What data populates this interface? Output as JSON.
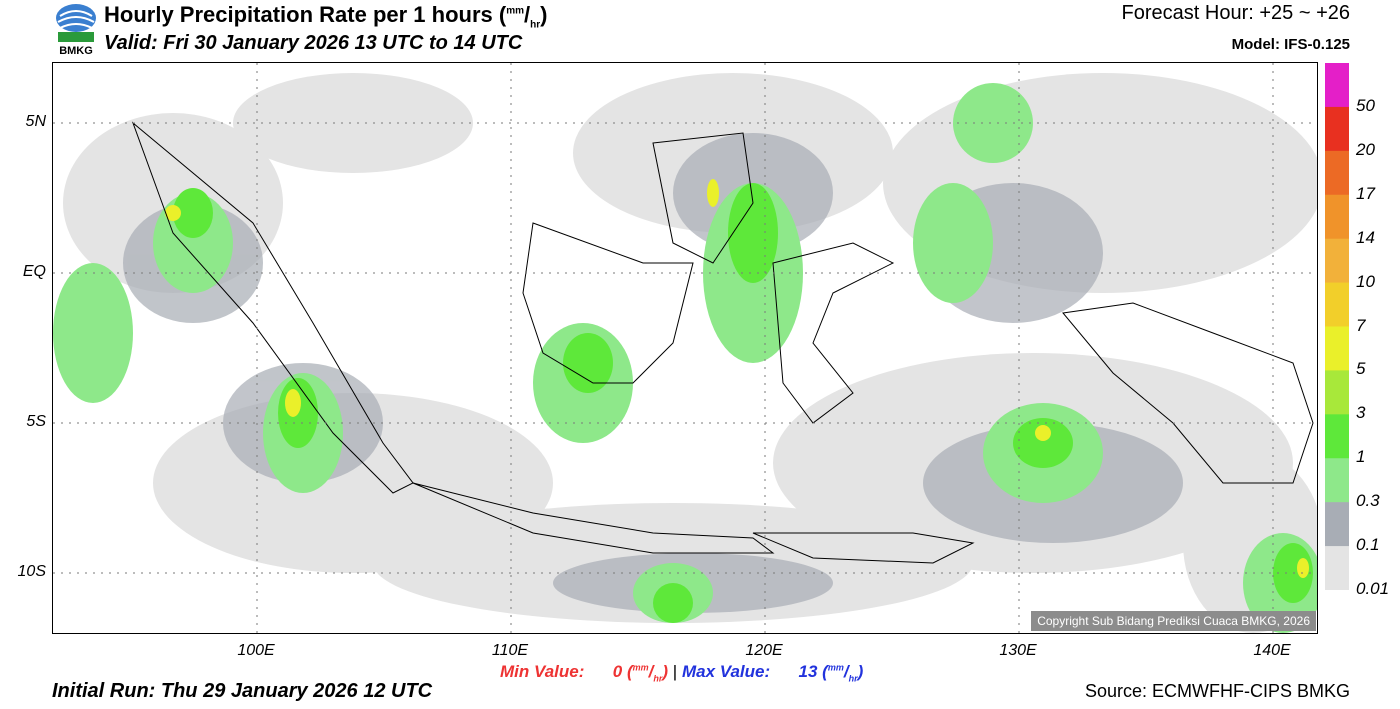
{
  "header": {
    "title_main": "Hourly Precipitation Rate per 1 hours (",
    "title_unit_top": "mm",
    "title_unit_sep": "/",
    "title_unit_bottom": "hr",
    "title_close": ")",
    "valid": "Valid: Fri 30 January 2026 13 UTC to 14 UTC",
    "forecast_hour": "Forecast Hour: +25 ~ +26",
    "model": "Model: IFS-0.125",
    "logo_text": "BMKG"
  },
  "map": {
    "lat_labels": [
      "5N",
      "EQ",
      "5S",
      "10S"
    ],
    "lon_labels": [
      "100E",
      "110E",
      "120E",
      "130E",
      "140E"
    ],
    "copyright": "Copyright Sub Bidang Prediksi Cuaca BMKG, 2026"
  },
  "stats": {
    "min_label": "Min Value:",
    "min_value": "0",
    "max_label": "Max Value:",
    "max_value": "13",
    "unit_top": "mm",
    "unit_bottom": "hr",
    "separator": "|"
  },
  "footer": {
    "initial_run": "Initial Run: Thu 29 January 2026 12 UTC",
    "source": "Source: ECMWFHF-CIPS BMKG"
  },
  "colorbar": {
    "labels": [
      "50",
      "20",
      "17",
      "14",
      "10",
      "7",
      "5",
      "3",
      "1",
      "0.3",
      "0.1",
      "0.01"
    ],
    "colors": [
      "#e41fc8",
      "#e83020",
      "#ec6a25",
      "#f0932a",
      "#f2b13a",
      "#f2cf2a",
      "#eaf02a",
      "#a8e83a",
      "#5ee83a",
      "#8ee88a",
      "#a8adb5",
      "#e4e4e4"
    ]
  }
}
